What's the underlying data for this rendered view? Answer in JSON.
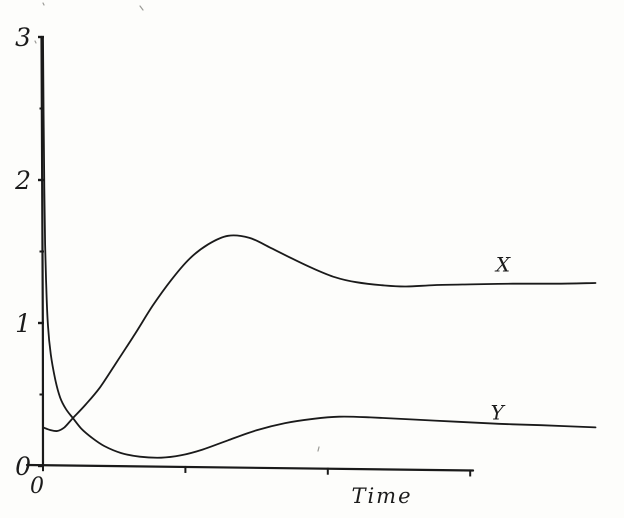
{
  "figure": {
    "background": "#fdfdfb",
    "ink_color": "#1a1a1a"
  },
  "chart_data": {
    "type": "line",
    "title": "",
    "xlabel": "Time",
    "ylabel": "",
    "xlim": [
      0,
      3.9
    ],
    "ylim": [
      0,
      3
    ],
    "grid": false,
    "legend_position": "inline-curve-labels",
    "x_axis": {
      "ticks": [
        1,
        2,
        3
      ],
      "tick_labels_shown": false,
      "origin_label": "0",
      "axis_end": 3.02
    },
    "y_axis": {
      "major_ticks": [
        0,
        1,
        2,
        3
      ],
      "major_tick_labels": [
        "0",
        "1",
        "2",
        "3"
      ],
      "minor_ticks": [
        0.5,
        1.5,
        2.5
      ]
    },
    "series": [
      {
        "name": "X",
        "label_t": 3.23,
        "label_value": 1.36,
        "points": [
          [
            0,
            0.27
          ],
          [
            0.05,
            0.252
          ],
          [
            0.1,
            0.245
          ],
          [
            0.15,
            0.27
          ],
          [
            0.21,
            0.335
          ],
          [
            0.3,
            0.43
          ],
          [
            0.4,
            0.55
          ],
          [
            0.52,
            0.73
          ],
          [
            0.65,
            0.93
          ],
          [
            0.77,
            1.12
          ],
          [
            0.9,
            1.3
          ],
          [
            1.03,
            1.45
          ],
          [
            1.16,
            1.55
          ],
          [
            1.3,
            1.61
          ],
          [
            1.45,
            1.595
          ],
          [
            1.6,
            1.525
          ],
          [
            1.75,
            1.45
          ],
          [
            1.9,
            1.38
          ],
          [
            2.05,
            1.32
          ],
          [
            2.2,
            1.285
          ],
          [
            2.4,
            1.262
          ],
          [
            2.55,
            1.255
          ],
          [
            2.75,
            1.265
          ],
          [
            3.0,
            1.27
          ],
          [
            3.3,
            1.275
          ],
          [
            3.6,
            1.275
          ],
          [
            3.88,
            1.28
          ]
        ]
      },
      {
        "name": "Y",
        "label_t": 3.19,
        "label_value": 0.325,
        "points": [
          [
            0,
            3.0
          ],
          [
            0.004,
            2.45
          ],
          [
            0.009,
            1.95
          ],
          [
            0.015,
            1.55
          ],
          [
            0.023,
            1.25
          ],
          [
            0.035,
            0.98
          ],
          [
            0.055,
            0.78
          ],
          [
            0.085,
            0.61
          ],
          [
            0.12,
            0.48
          ],
          [
            0.16,
            0.4
          ],
          [
            0.21,
            0.335
          ],
          [
            0.27,
            0.26
          ],
          [
            0.34,
            0.2
          ],
          [
            0.43,
            0.14
          ],
          [
            0.55,
            0.09
          ],
          [
            0.68,
            0.065
          ],
          [
            0.83,
            0.058
          ],
          [
            0.97,
            0.075
          ],
          [
            1.12,
            0.115
          ],
          [
            1.3,
            0.18
          ],
          [
            1.5,
            0.25
          ],
          [
            1.7,
            0.3
          ],
          [
            1.9,
            0.33
          ],
          [
            2.08,
            0.345
          ],
          [
            2.3,
            0.34
          ],
          [
            2.6,
            0.325
          ],
          [
            2.9,
            0.31
          ],
          [
            3.2,
            0.295
          ],
          [
            3.5,
            0.285
          ],
          [
            3.88,
            0.27
          ]
        ]
      }
    ]
  }
}
